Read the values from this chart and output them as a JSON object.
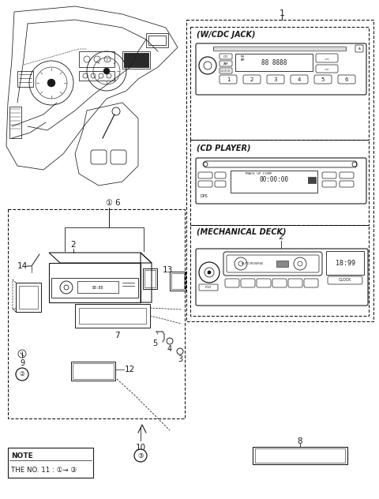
{
  "bg_color": "#ffffff",
  "line_color": "#1a1a1a",
  "sections": {
    "wcdc": "(W/CDC JACK)",
    "cdplayer": "(CD PLAYER)",
    "mech": "(MECHANICAL DECK)"
  }
}
